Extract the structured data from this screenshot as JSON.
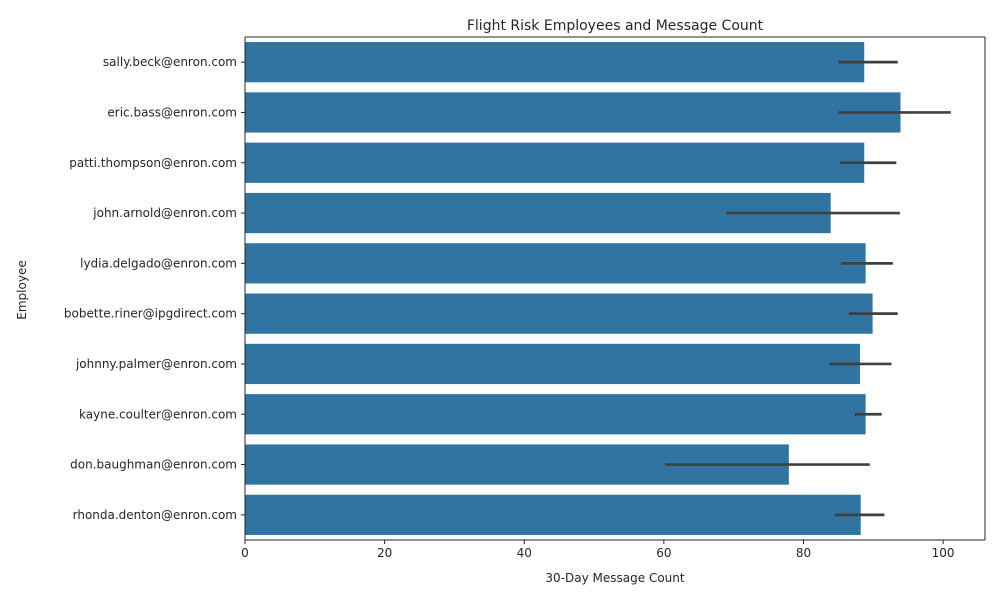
{
  "chart_data": {
    "type": "bar",
    "orientation": "horizontal",
    "title": "Flight Risk Employees and Message Count",
    "xlabel": "30-Day Message Count",
    "ylabel": "Employee",
    "xlim": [
      0,
      106
    ],
    "xticks": [
      0,
      20,
      40,
      60,
      80,
      100
    ],
    "grid": false,
    "bar_color": "#3274a1",
    "errorbar_color": "#404040",
    "categories": [
      "sally.beck@enron.com",
      "eric.bass@enron.com",
      "patti.thompson@enron.com",
      "john.arnold@enron.com",
      "lydia.delgado@enron.com",
      "bobette.riner@ipgdirect.com",
      "johnny.palmer@enron.com",
      "kayne.coulter@enron.com",
      "don.baughman@enron.com",
      "rhonda.denton@enron.com"
    ],
    "values": [
      88.7,
      93.9,
      88.7,
      83.9,
      88.9,
      89.9,
      88.1,
      88.9,
      77.9,
      88.2
    ],
    "error_low": [
      85.0,
      85.0,
      85.2,
      69.0,
      85.4,
      86.5,
      83.7,
      87.3,
      60.2,
      84.5
    ],
    "error_high": [
      93.5,
      101.1,
      93.3,
      93.8,
      92.8,
      93.5,
      92.6,
      91.2,
      89.5,
      91.6
    ]
  }
}
